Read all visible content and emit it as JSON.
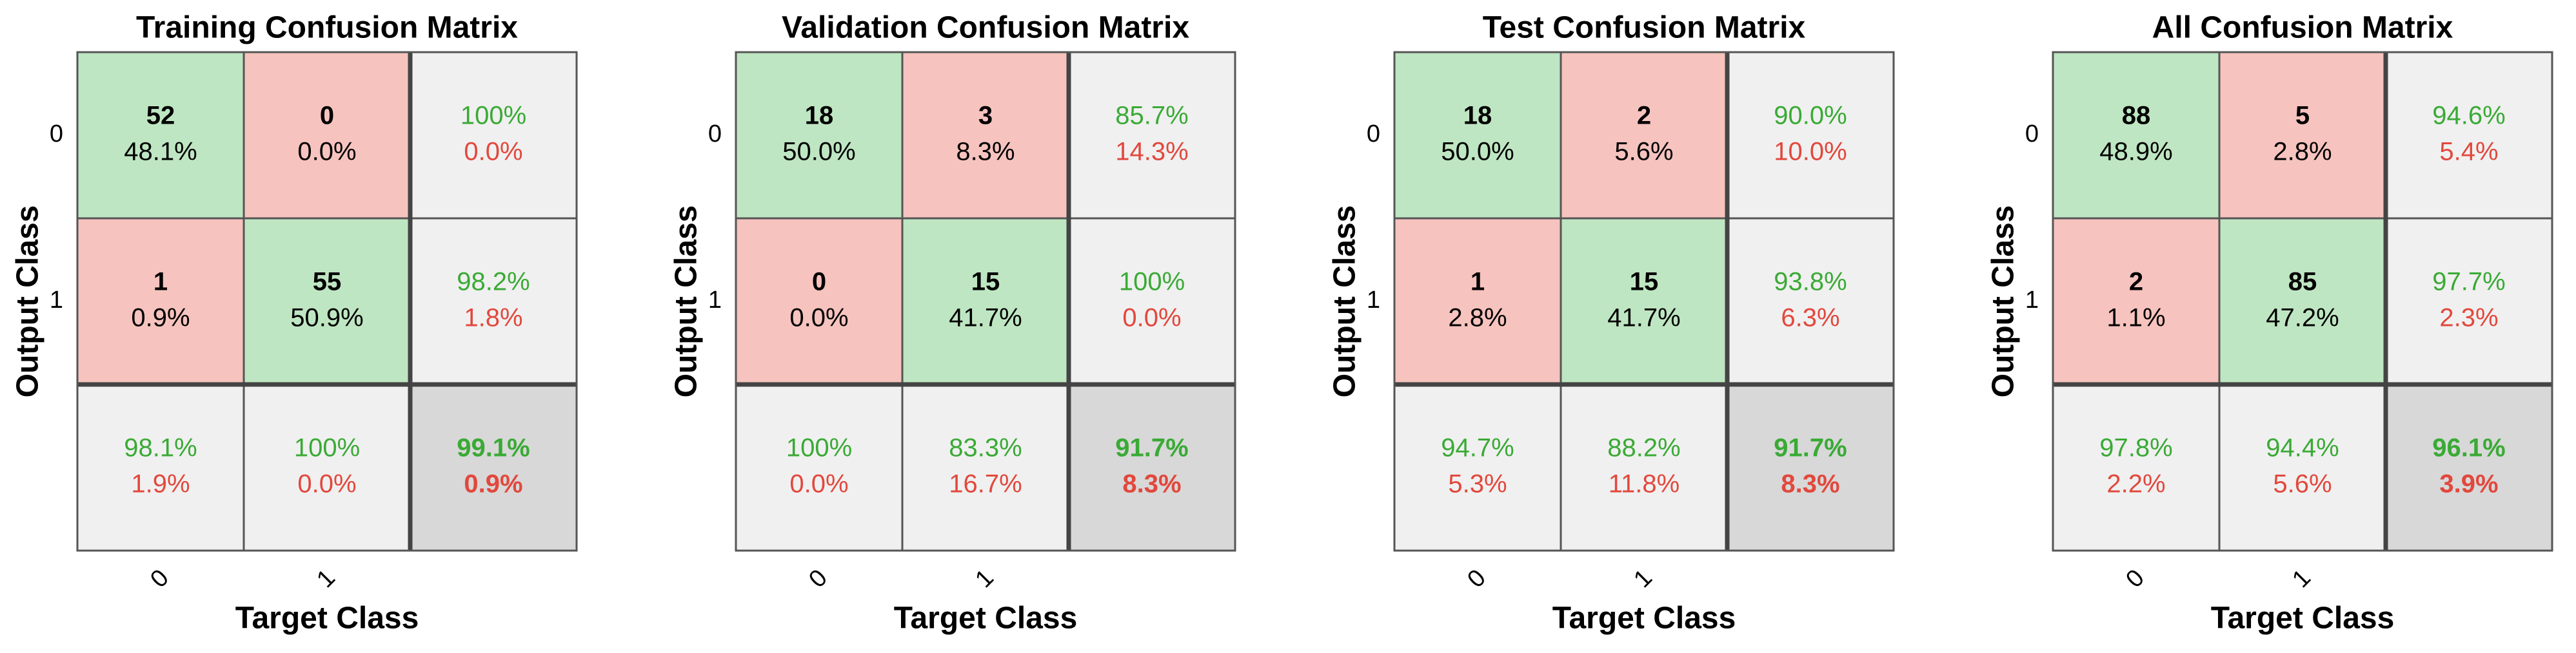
{
  "chart_data": [
    {
      "type": "confusion_matrix",
      "title": "Training Confusion Matrix",
      "xlabel": "Target Class",
      "ylabel": "Output Class",
      "classes": [
        "0",
        "1"
      ],
      "counts": [
        [
          52,
          0
        ],
        [
          1,
          55
        ]
      ],
      "percents": {
        "values": [
          [
            48.1,
            0.0
          ],
          [
            0.9,
            50.9
          ]
        ],
        "value_labels": [
          [
            "48.1%",
            "0.0%"
          ],
          [
            "0.9%",
            "50.9%"
          ]
        ]
      },
      "row_summary": {
        "values": [
          [
            100,
            0.0
          ],
          [
            98.2,
            1.8
          ]
        ],
        "value_labels": [
          [
            "100%",
            "0.0%"
          ],
          [
            "98.2%",
            "1.8%"
          ]
        ]
      },
      "col_summary": {
        "values": [
          [
            98.1,
            1.9
          ],
          [
            100,
            0.0
          ]
        ],
        "value_labels": [
          [
            "98.1%",
            "1.9%"
          ],
          [
            "100%",
            "0.0%"
          ]
        ]
      },
      "overall": {
        "values": [
          99.1,
          0.9
        ],
        "value_labels": [
          "99.1%",
          "0.9%"
        ]
      },
      "colors": {
        "correct": "#bfe6c2",
        "error": "#f6c3be",
        "summary": "#f0f0f0",
        "overall": "#d8d8d8",
        "good_text": "#3aaa35",
        "bad_text": "#e2483d"
      }
    },
    {
      "type": "confusion_matrix",
      "title": "Validation Confusion Matrix",
      "xlabel": "Target Class",
      "ylabel": "Output Class",
      "classes": [
        "0",
        "1"
      ],
      "counts": [
        [
          18,
          3
        ],
        [
          0,
          15
        ]
      ],
      "percents": {
        "values": [
          [
            50.0,
            8.3
          ],
          [
            0.0,
            41.7
          ]
        ],
        "value_labels": [
          [
            "50.0%",
            "8.3%"
          ],
          [
            "0.0%",
            "41.7%"
          ]
        ]
      },
      "row_summary": {
        "values": [
          [
            85.7,
            14.3
          ],
          [
            100,
            0.0
          ]
        ],
        "value_labels": [
          [
            "85.7%",
            "14.3%"
          ],
          [
            "100%",
            "0.0%"
          ]
        ]
      },
      "col_summary": {
        "values": [
          [
            100,
            0.0
          ],
          [
            83.3,
            16.7
          ]
        ],
        "value_labels": [
          [
            "100%",
            "0.0%"
          ],
          [
            "83.3%",
            "16.7%"
          ]
        ]
      },
      "overall": {
        "values": [
          91.7,
          8.3
        ],
        "value_labels": [
          "91.7%",
          "8.3%"
        ]
      },
      "colors": {
        "correct": "#bfe6c2",
        "error": "#f6c3be",
        "summary": "#f0f0f0",
        "overall": "#d8d8d8",
        "good_text": "#3aaa35",
        "bad_text": "#e2483d"
      }
    },
    {
      "type": "confusion_matrix",
      "title": "Test Confusion Matrix",
      "xlabel": "Target Class",
      "ylabel": "Output Class",
      "classes": [
        "0",
        "1"
      ],
      "counts": [
        [
          18,
          2
        ],
        [
          1,
          15
        ]
      ],
      "percents": {
        "values": [
          [
            50.0,
            5.6
          ],
          [
            2.8,
            41.7
          ]
        ],
        "value_labels": [
          [
            "50.0%",
            "5.6%"
          ],
          [
            "2.8%",
            "41.7%"
          ]
        ]
      },
      "row_summary": {
        "values": [
          [
            90.0,
            10.0
          ],
          [
            93.8,
            6.3
          ]
        ],
        "value_labels": [
          [
            "90.0%",
            "10.0%"
          ],
          [
            "93.8%",
            "6.3%"
          ]
        ]
      },
      "col_summary": {
        "values": [
          [
            94.7,
            5.3
          ],
          [
            88.2,
            11.8
          ]
        ],
        "value_labels": [
          [
            "94.7%",
            "5.3%"
          ],
          [
            "88.2%",
            "11.8%"
          ]
        ]
      },
      "overall": {
        "values": [
          91.7,
          8.3
        ],
        "value_labels": [
          "91.7%",
          "8.3%"
        ]
      },
      "colors": {
        "correct": "#bfe6c2",
        "error": "#f6c3be",
        "summary": "#f0f0f0",
        "overall": "#d8d8d8",
        "good_text": "#3aaa35",
        "bad_text": "#e2483d"
      }
    },
    {
      "type": "confusion_matrix",
      "title": "All Confusion Matrix",
      "xlabel": "Target Class",
      "ylabel": "Output Class",
      "classes": [
        "0",
        "1"
      ],
      "counts": [
        [
          88,
          5
        ],
        [
          2,
          85
        ]
      ],
      "percents": {
        "values": [
          [
            48.9,
            2.8
          ],
          [
            1.1,
            47.2
          ]
        ],
        "value_labels": [
          [
            "48.9%",
            "2.8%"
          ],
          [
            "1.1%",
            "47.2%"
          ]
        ]
      },
      "row_summary": {
        "values": [
          [
            94.6,
            5.4
          ],
          [
            97.7,
            2.3
          ]
        ],
        "value_labels": [
          [
            "94.6%",
            "5.4%"
          ],
          [
            "97.7%",
            "2.3%"
          ]
        ]
      },
      "col_summary": {
        "values": [
          [
            97.8,
            2.2
          ],
          [
            94.4,
            5.6
          ]
        ],
        "value_labels": [
          [
            "97.8%",
            "2.2%"
          ],
          [
            "94.4%",
            "5.6%"
          ]
        ]
      },
      "overall": {
        "values": [
          96.1,
          3.9
        ],
        "value_labels": [
          "96.1%",
          "3.9%"
        ]
      },
      "colors": {
        "correct": "#bfe6c2",
        "error": "#f6c3be",
        "summary": "#f0f0f0",
        "overall": "#d8d8d8",
        "good_text": "#3aaa35",
        "bad_text": "#e2483d"
      }
    }
  ]
}
